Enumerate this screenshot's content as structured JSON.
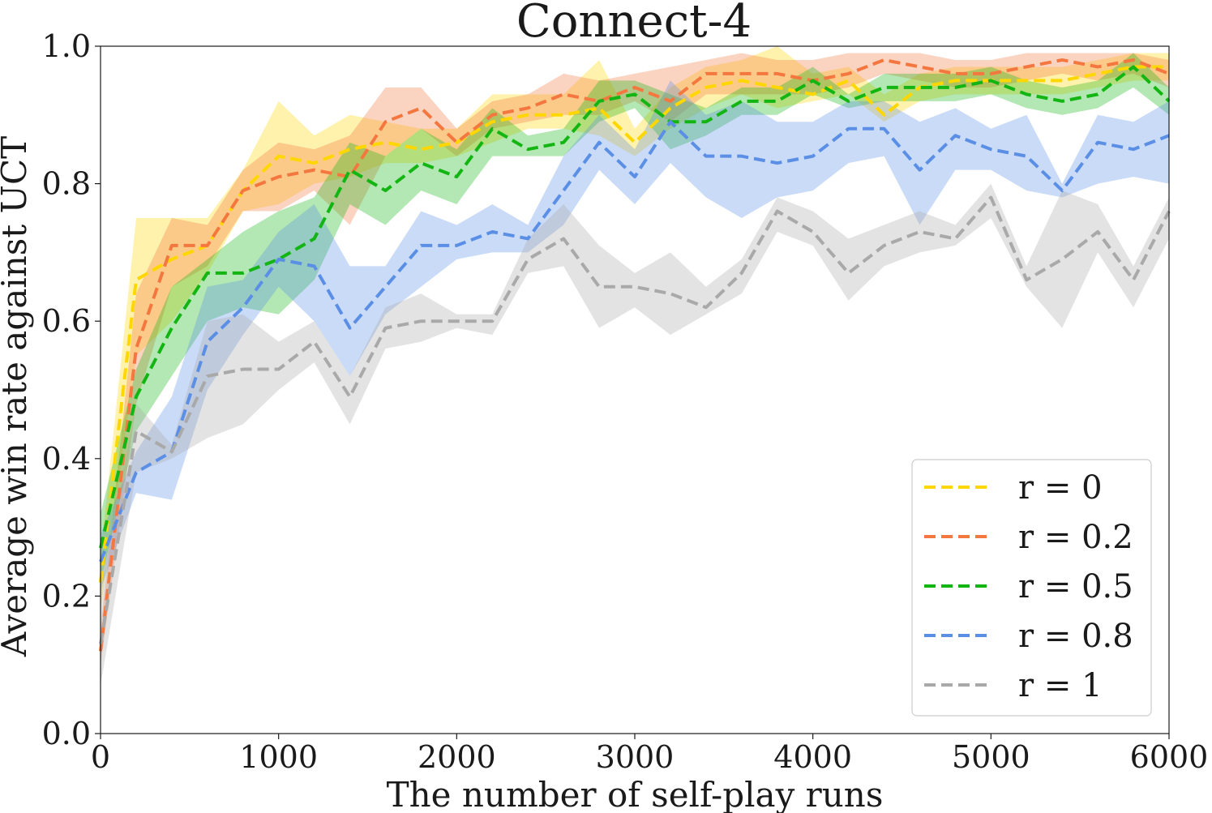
{
  "chart_data": {
    "type": "line",
    "title": "Connect-4",
    "xlabel": "The number of self-play runs",
    "ylabel": "Average win rate against UCT",
    "xlim": [
      0,
      6000
    ],
    "ylim": [
      0,
      1.0
    ],
    "xticks": [
      0,
      1000,
      2000,
      3000,
      4000,
      5000,
      6000
    ],
    "xtick_labels": [
      "0",
      "1000",
      "2000",
      "3000",
      "4000",
      "5000",
      "6000"
    ],
    "yticks": [
      0,
      0.2,
      0.4,
      0.6,
      0.8,
      1.0
    ],
    "ytick_labels": [
      "0.0",
      "0.2",
      "0.4",
      "0.6",
      "0.8",
      "1.0"
    ],
    "grid": false,
    "legend_position": "lower-right",
    "x": [
      0,
      200,
      400,
      600,
      800,
      1000,
      1200,
      1400,
      1600,
      1800,
      2000,
      2200,
      2400,
      2600,
      2800,
      3000,
      3200,
      3400,
      3600,
      3800,
      4000,
      4200,
      4400,
      4600,
      4800,
      5000,
      5200,
      5400,
      5600,
      5800,
      6000
    ],
    "series": [
      {
        "name": "r = 0",
        "color": "#FFD700",
        "values": [
          0.22,
          0.66,
          0.69,
          0.71,
          0.79,
          0.84,
          0.83,
          0.85,
          0.86,
          0.85,
          0.86,
          0.89,
          0.9,
          0.9,
          0.91,
          0.86,
          0.91,
          0.94,
          0.95,
          0.94,
          0.93,
          0.95,
          0.9,
          0.94,
          0.95,
          0.95,
          0.95,
          0.95,
          0.96,
          0.97,
          0.97
        ],
        "lower": [
          0.18,
          0.55,
          0.6,
          0.67,
          0.76,
          0.77,
          0.8,
          0.81,
          0.83,
          0.83,
          0.84,
          0.86,
          0.88,
          0.88,
          0.87,
          0.84,
          0.88,
          0.91,
          0.93,
          0.91,
          0.92,
          0.93,
          0.89,
          0.92,
          0.93,
          0.93,
          0.93,
          0.93,
          0.94,
          0.95,
          0.95
        ],
        "upper": [
          0.26,
          0.75,
          0.75,
          0.75,
          0.82,
          0.92,
          0.87,
          0.9,
          0.89,
          0.88,
          0.88,
          0.93,
          0.93,
          0.93,
          0.98,
          0.88,
          0.94,
          0.97,
          0.98,
          1.0,
          0.96,
          0.97,
          0.93,
          0.96,
          0.97,
          0.97,
          0.97,
          0.97,
          0.98,
          0.99,
          0.99
        ]
      },
      {
        "name": "r = 0.2",
        "color": "#F4773F",
        "values": [
          0.12,
          0.56,
          0.71,
          0.71,
          0.79,
          0.81,
          0.82,
          0.81,
          0.89,
          0.91,
          0.86,
          0.9,
          0.91,
          0.93,
          0.92,
          0.94,
          0.92,
          0.96,
          0.96,
          0.96,
          0.95,
          0.96,
          0.98,
          0.97,
          0.96,
          0.96,
          0.97,
          0.98,
          0.97,
          0.98,
          0.96
        ],
        "lower": [
          0.1,
          0.48,
          0.65,
          0.68,
          0.76,
          0.76,
          0.79,
          0.74,
          0.84,
          0.88,
          0.84,
          0.88,
          0.89,
          0.9,
          0.9,
          0.92,
          0.89,
          0.93,
          0.93,
          0.93,
          0.93,
          0.94,
          0.96,
          0.95,
          0.94,
          0.94,
          0.95,
          0.96,
          0.95,
          0.96,
          0.94
        ],
        "upper": [
          0.15,
          0.64,
          0.75,
          0.74,
          0.82,
          0.86,
          0.85,
          0.87,
          0.94,
          0.94,
          0.88,
          0.92,
          0.93,
          0.96,
          0.95,
          0.96,
          0.97,
          0.98,
          0.99,
          0.98,
          0.98,
          0.99,
          0.99,
          0.99,
          0.98,
          0.98,
          0.99,
          0.99,
          0.99,
          0.99,
          0.98
        ]
      },
      {
        "name": "r = 0.5",
        "color": "#13B513",
        "values": [
          0.27,
          0.49,
          0.59,
          0.67,
          0.67,
          0.69,
          0.72,
          0.82,
          0.79,
          0.83,
          0.81,
          0.88,
          0.85,
          0.86,
          0.92,
          0.93,
          0.89,
          0.89,
          0.92,
          0.92,
          0.95,
          0.92,
          0.94,
          0.94,
          0.94,
          0.95,
          0.93,
          0.92,
          0.93,
          0.97,
          0.92
        ],
        "lower": [
          0.22,
          0.44,
          0.52,
          0.6,
          0.62,
          0.61,
          0.66,
          0.77,
          0.74,
          0.79,
          0.77,
          0.84,
          0.84,
          0.84,
          0.89,
          0.91,
          0.85,
          0.87,
          0.9,
          0.9,
          0.93,
          0.91,
          0.92,
          0.92,
          0.92,
          0.93,
          0.91,
          0.9,
          0.91,
          0.94,
          0.9
        ],
        "upper": [
          0.32,
          0.53,
          0.65,
          0.69,
          0.73,
          0.76,
          0.78,
          0.86,
          0.84,
          0.88,
          0.85,
          0.91,
          0.87,
          0.88,
          0.95,
          0.95,
          0.93,
          0.91,
          0.94,
          0.94,
          0.97,
          0.93,
          0.96,
          0.96,
          0.96,
          0.97,
          0.95,
          0.94,
          0.95,
          0.99,
          0.94
        ]
      },
      {
        "name": "r = 0.8",
        "color": "#5B8FE6",
        "values": [
          0.25,
          0.38,
          0.41,
          0.57,
          0.62,
          0.69,
          0.68,
          0.59,
          0.65,
          0.71,
          0.71,
          0.73,
          0.72,
          0.79,
          0.86,
          0.81,
          0.89,
          0.84,
          0.84,
          0.83,
          0.84,
          0.88,
          0.88,
          0.82,
          0.87,
          0.85,
          0.84,
          0.79,
          0.86,
          0.85,
          0.87
        ],
        "lower": [
          0.21,
          0.35,
          0.34,
          0.5,
          0.58,
          0.65,
          0.6,
          0.52,
          0.61,
          0.65,
          0.69,
          0.7,
          0.7,
          0.74,
          0.82,
          0.77,
          0.83,
          0.78,
          0.75,
          0.78,
          0.79,
          0.83,
          0.84,
          0.74,
          0.82,
          0.82,
          0.79,
          0.78,
          0.8,
          0.81,
          0.8
        ],
        "upper": [
          0.29,
          0.41,
          0.49,
          0.65,
          0.66,
          0.73,
          0.77,
          0.68,
          0.68,
          0.76,
          0.74,
          0.77,
          0.74,
          0.84,
          0.9,
          0.85,
          0.95,
          0.9,
          0.92,
          0.89,
          0.89,
          0.92,
          0.92,
          0.89,
          0.91,
          0.88,
          0.9,
          0.8,
          0.9,
          0.89,
          0.92
        ]
      },
      {
        "name": "r = 1",
        "color": "#A9A9A9",
        "values": [
          0.13,
          0.44,
          0.41,
          0.52,
          0.53,
          0.53,
          0.57,
          0.49,
          0.59,
          0.6,
          0.6,
          0.6,
          0.69,
          0.72,
          0.65,
          0.65,
          0.64,
          0.62,
          0.67,
          0.76,
          0.73,
          0.67,
          0.71,
          0.73,
          0.72,
          0.78,
          0.66,
          0.69,
          0.73,
          0.66,
          0.76
        ],
        "lower": [
          0.07,
          0.38,
          0.4,
          0.43,
          0.45,
          0.5,
          0.54,
          0.45,
          0.56,
          0.57,
          0.59,
          0.58,
          0.67,
          0.68,
          0.59,
          0.62,
          0.58,
          0.61,
          0.64,
          0.73,
          0.71,
          0.63,
          0.68,
          0.7,
          0.71,
          0.75,
          0.65,
          0.59,
          0.7,
          0.62,
          0.72
        ],
        "upper": [
          0.21,
          0.48,
          0.42,
          0.6,
          0.61,
          0.57,
          0.6,
          0.52,
          0.62,
          0.64,
          0.61,
          0.61,
          0.72,
          0.77,
          0.71,
          0.67,
          0.7,
          0.65,
          0.69,
          0.78,
          0.76,
          0.72,
          0.74,
          0.76,
          0.74,
          0.8,
          0.68,
          0.79,
          0.77,
          0.68,
          0.78
        ]
      }
    ]
  }
}
